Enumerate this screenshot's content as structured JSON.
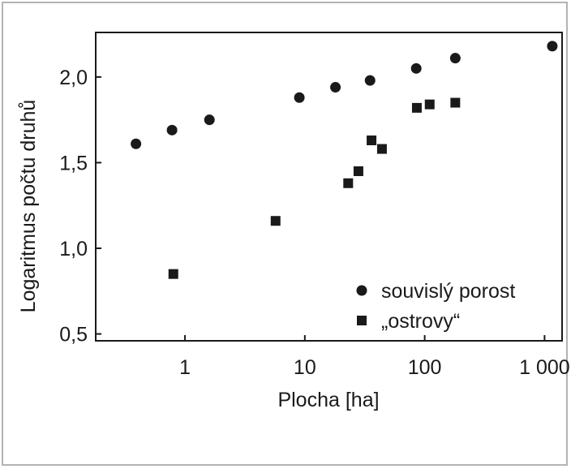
{
  "chart_data": {
    "type": "scatter",
    "title": "",
    "xlabel": "Plocha [ha]",
    "ylabel": "Logaritmus počtu druhů",
    "xscale": "log",
    "xlim": [
      0.18,
      1400
    ],
    "ylim": [
      0.46,
      2.26
    ],
    "xticks": [
      {
        "value": 1,
        "label": "1"
      },
      {
        "value": 10,
        "label": "10"
      },
      {
        "value": 100,
        "label": "100"
      },
      {
        "value": 1000,
        "label": "1 000"
      }
    ],
    "yticks": [
      {
        "value": 0.5,
        "label": "0,5"
      },
      {
        "value": 1.0,
        "label": "1,0"
      },
      {
        "value": 1.5,
        "label": "1,5"
      },
      {
        "value": 2.0,
        "label": "2,0"
      }
    ],
    "grid": false,
    "legend_position": "bottom-right",
    "series": [
      {
        "name": "souvislý porost",
        "marker": "circle",
        "color": "#1a1a1a",
        "points": [
          {
            "x": 0.39,
            "y": 1.61
          },
          {
            "x": 0.78,
            "y": 1.69
          },
          {
            "x": 1.6,
            "y": 1.75
          },
          {
            "x": 9,
            "y": 1.88
          },
          {
            "x": 18,
            "y": 1.94
          },
          {
            "x": 35,
            "y": 1.98
          },
          {
            "x": 85,
            "y": 2.05
          },
          {
            "x": 180,
            "y": 2.11
          },
          {
            "x": 1160,
            "y": 2.18
          }
        ]
      },
      {
        "name": "„ostrovy“",
        "marker": "square",
        "color": "#1a1a1a",
        "points": [
          {
            "x": 0.8,
            "y": 0.85
          },
          {
            "x": 5.7,
            "y": 1.16
          },
          {
            "x": 23,
            "y": 1.38
          },
          {
            "x": 28,
            "y": 1.45
          },
          {
            "x": 36,
            "y": 1.63
          },
          {
            "x": 44,
            "y": 1.58
          },
          {
            "x": 86,
            "y": 1.82
          },
          {
            "x": 110,
            "y": 1.84
          },
          {
            "x": 180,
            "y": 1.85
          }
        ]
      }
    ]
  }
}
